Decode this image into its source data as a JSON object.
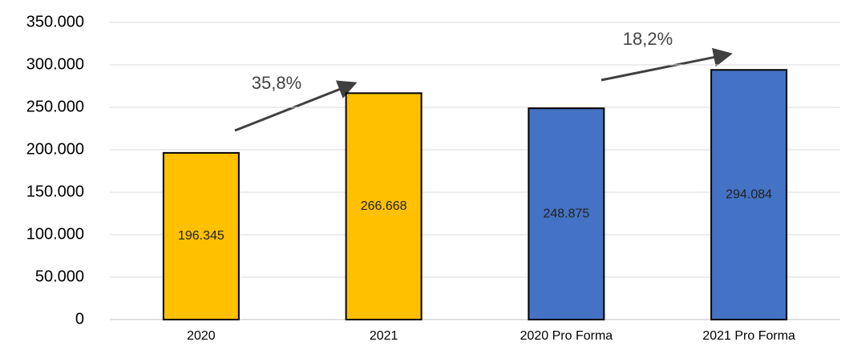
{
  "chart_data": {
    "type": "bar",
    "categories": [
      "2020",
      "2021",
      "2020 Pro Forma",
      "2021 Pro Forma"
    ],
    "values": [
      196345,
      266668,
      248875,
      294084
    ],
    "value_labels": [
      "196.345",
      "266.668",
      "248.875",
      "294.084"
    ],
    "colors": [
      "#ffc000",
      "#ffc000",
      "#4472c4",
      "#4472c4"
    ],
    "ylim": [
      0,
      350000
    ],
    "yticks": [
      0,
      {
        "value": 50000,
        "label": "50.000"
      },
      {
        "value": 100000,
        "label": "100.000"
      },
      {
        "value": 150000,
        "label": "150.000"
      },
      {
        "value": 200000,
        "label": "200.000"
      },
      {
        "value": 250000,
        "label": "250.000"
      },
      {
        "value": 300000,
        "label": "300.000"
      },
      {
        "value": 350000,
        "label": "350.000"
      }
    ],
    "grid": true,
    "annotations": [
      "35,8%",
      "18,2%"
    ]
  }
}
